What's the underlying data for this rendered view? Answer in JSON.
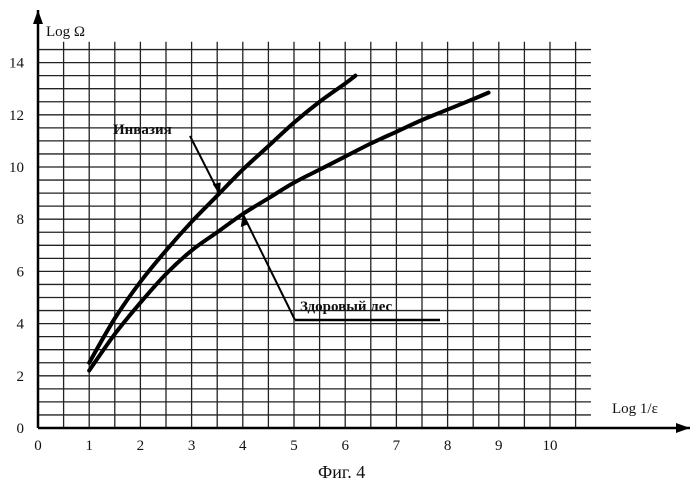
{
  "chart_data": {
    "type": "line",
    "title": "",
    "xlabel": "Log 1/ε",
    "ylabel": "Log Ω",
    "caption": "Фиг. 4",
    "xlim": [
      0,
      10.8
    ],
    "ylim": [
      0,
      14.8
    ],
    "x_ticks": [
      0,
      1,
      2,
      3,
      4,
      5,
      6,
      7,
      8,
      9,
      10
    ],
    "y_ticks": [
      0,
      2,
      4,
      6,
      8,
      10,
      12,
      14
    ],
    "grid": true,
    "series": [
      {
        "name": "Инвазия",
        "x": [
          1.0,
          1.5,
          2.0,
          2.5,
          3.0,
          3.5,
          4.0,
          4.5,
          5.0,
          5.5,
          6.0,
          6.2
        ],
        "y": [
          2.5,
          4.2,
          5.6,
          6.8,
          7.9,
          8.9,
          9.9,
          10.8,
          11.7,
          12.5,
          13.2,
          13.5
        ]
      },
      {
        "name": "Здоровый лес",
        "x": [
          1.0,
          1.5,
          2.0,
          2.5,
          3.0,
          3.5,
          4.0,
          4.5,
          5.0,
          5.5,
          6.0,
          6.5,
          7.0,
          7.5,
          8.0,
          8.5,
          8.8
        ],
        "y": [
          2.2,
          3.6,
          4.8,
          5.9,
          6.8,
          7.5,
          8.2,
          8.8,
          9.4,
          9.9,
          10.4,
          10.9,
          11.35,
          11.8,
          12.2,
          12.6,
          12.85
        ]
      }
    ],
    "annotations": [
      {
        "text": "Инвазия",
        "series": 0
      },
      {
        "text": "Здоровый лес",
        "series": 1
      }
    ]
  }
}
